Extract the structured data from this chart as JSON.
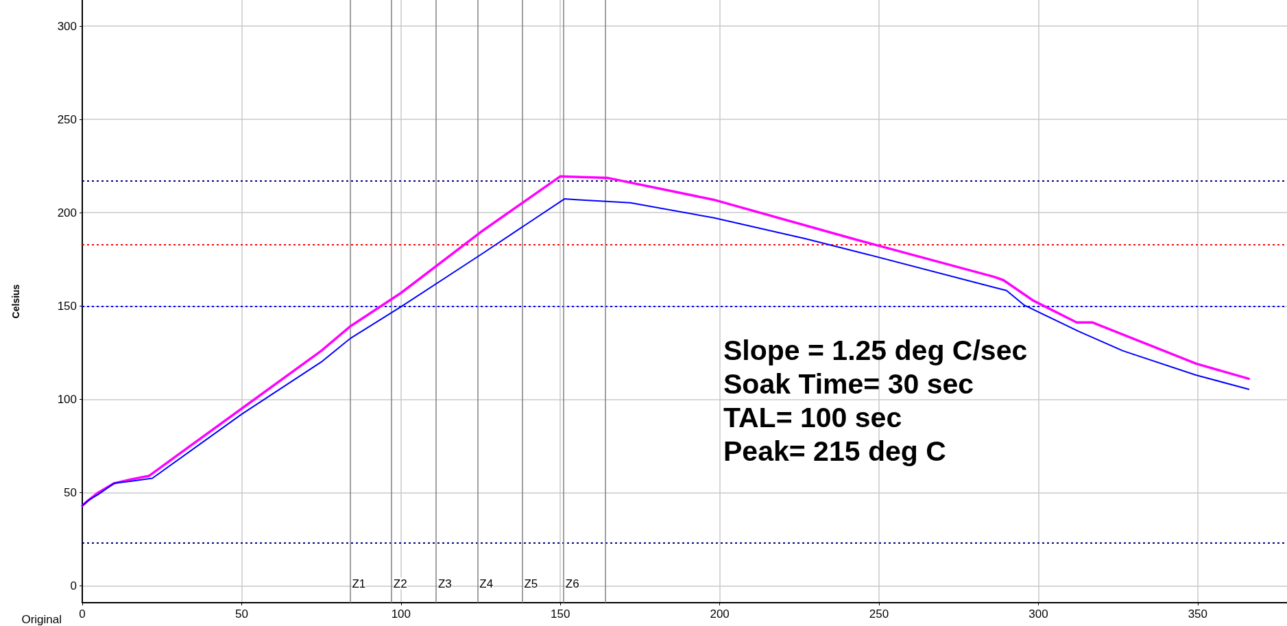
{
  "chart_data": {
    "type": "line",
    "xlabel": "Original",
    "ylabel": "Celsius",
    "xlim": [
      0,
      378
    ],
    "xticks": [
      0,
      50,
      100,
      150,
      200,
      250,
      300,
      350
    ],
    "ylim": [
      -9,
      314
    ],
    "yticks": [
      0,
      50,
      100,
      150,
      200,
      250,
      300
    ],
    "grid": true,
    "marker": "none",
    "line_style": "solid",
    "series": [
      {
        "color": "#ff00ff",
        "x": [
          0,
          2,
          5,
          10,
          15,
          21,
          25,
          50,
          75,
          84,
          100,
          125,
          150,
          165,
          198,
          243,
          286,
          289,
          298.5,
          312,
          317,
          349.5,
          366
        ],
        "values": [
          43,
          46,
          50,
          55,
          57,
          59,
          64,
          95,
          126,
          139,
          157,
          189.6,
          219.5,
          218.6,
          207,
          185.5,
          165.7,
          163.9,
          152.8,
          141.2,
          141.2,
          119.1,
          111
        ]
      },
      {
        "color": "#0000ff",
        "x": [
          0,
          2,
          5,
          10,
          15,
          22,
          50,
          75,
          84,
          100,
          125,
          151.3,
          155,
          172,
          198,
          227,
          246.5,
          286,
          290,
          295.6,
          312.8,
          326.5,
          349.4,
          366
        ],
        "values": [
          43,
          46,
          49,
          55,
          56,
          57.7,
          92,
          120,
          132.5,
          149.6,
          177.5,
          207.4,
          207,
          205.3,
          197.3,
          186,
          177.6,
          160,
          158.3,
          150.4,
          136.3,
          126,
          113,
          105.4
        ]
      }
    ],
    "ref_lines": [
      {
        "axis": "y",
        "value": 217,
        "label": null,
        "color": "#000080",
        "line_style": "dotted"
      },
      {
        "axis": "y",
        "value": 183,
        "label": null,
        "color": "#ff0000",
        "line_style": "dotted"
      },
      {
        "axis": "y",
        "value": 150,
        "label": null,
        "color": "#0000ff",
        "line_style": "dotted"
      },
      {
        "axis": "y",
        "value": 23,
        "label": null,
        "color": "#000080",
        "line_style": "dotted"
      },
      {
        "axis": "x",
        "value": 84,
        "label": "Z1",
        "color": "#808080",
        "line_style": "solid"
      },
      {
        "axis": "x",
        "value": 97,
        "label": "Z2",
        "color": "#808080",
        "line_style": "solid"
      },
      {
        "axis": "x",
        "value": 111,
        "label": "Z3",
        "color": "#808080",
        "line_style": "solid"
      },
      {
        "axis": "x",
        "value": 124,
        "label": "Z4",
        "color": "#808080",
        "line_style": "solid"
      },
      {
        "axis": "x",
        "value": 138,
        "label": "Z5",
        "color": "#808080",
        "line_style": "solid"
      },
      {
        "axis": "x",
        "value": 151,
        "label": "Z6",
        "color": "#808080",
        "line_style": "solid"
      },
      {
        "axis": "x",
        "value": 164,
        "label": null,
        "color": "#808080",
        "line_style": "solid"
      }
    ],
    "annotations": [
      "Slope = 1.25 deg C/sec",
      "Soak Time= 30 sec",
      "TAL= 100 sec",
      "Peak= 215 deg C"
    ]
  }
}
